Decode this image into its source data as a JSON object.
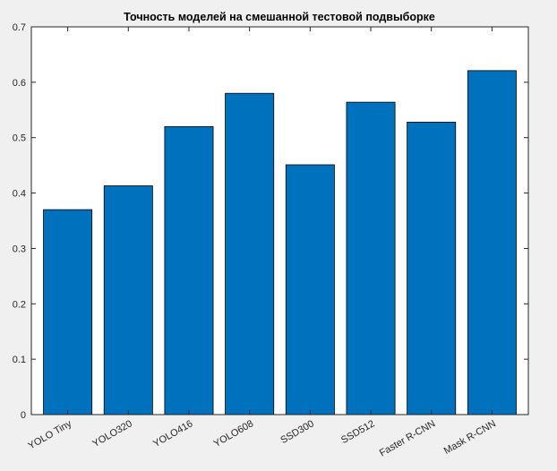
{
  "chart_data": {
    "type": "bar",
    "title": "Точность моделей на смешанной тестовой подвыборке",
    "xlabel": "",
    "ylabel": "",
    "categories": [
      "YOLO Tiny",
      "YOLO320",
      "YOLO416",
      "YOLO608",
      "SSD300",
      "SSD512",
      "Faster R-CNN",
      "Mask R-CNN"
    ],
    "values": [
      0.37,
      0.413,
      0.52,
      0.58,
      0.451,
      0.564,
      0.528,
      0.621
    ],
    "ylim": [
      0,
      0.7
    ],
    "yticks": [
      "0",
      "0.1",
      "0.2",
      "0.3",
      "0.4",
      "0.5",
      "0.6",
      "0.7"
    ],
    "grid": false,
    "legend": "none",
    "colors": {
      "bar": "#0072bd",
      "bar_edge": "#000000",
      "axes_bg": "#ffffff",
      "figure_bg": "#f0f0f0",
      "text": "#262626"
    }
  }
}
